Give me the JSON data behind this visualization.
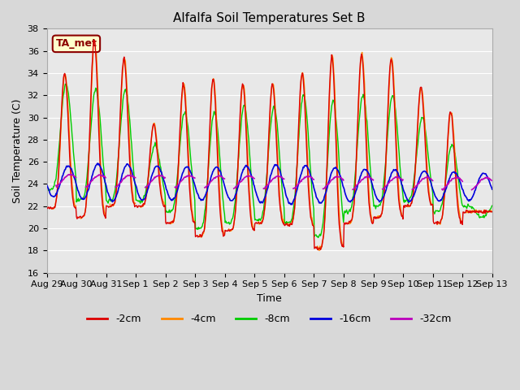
{
  "title": "Alfalfa Soil Temperatures Set B",
  "xlabel": "Time",
  "ylabel": "Soil Temperature (C)",
  "ylim": [
    16,
    38
  ],
  "yticks": [
    16,
    18,
    20,
    22,
    24,
    26,
    28,
    30,
    32,
    34,
    36,
    38
  ],
  "fig_bg": "#d8d8d8",
  "plot_bg": "#e8e8e8",
  "grid_color": "#ffffff",
  "colors": {
    "-2cm": "#dd0000",
    "-4cm": "#ff8800",
    "-8cm": "#00cc00",
    "-16cm": "#0000dd",
    "-32cm": "#bb00bb"
  },
  "legend_label": "TA_met",
  "legend_box_color": "#ffffcc",
  "legend_box_edge": "#8B0000",
  "legend_text_color": "#8B0000",
  "x_tick_labels": [
    "Aug 29",
    "Aug 30",
    "Aug 31",
    "Sep 1",
    "Sep 2",
    "Sep 3",
    "Sep 4",
    "Sep 5",
    "Sep 6",
    "Sep 7",
    "Sep 8",
    "Sep 9",
    "Sep 10",
    "Sep 11",
    "Sep 12",
    "Sep 13"
  ],
  "daily_peaks_2cm": [
    34.0,
    37.0,
    35.3,
    29.4,
    33.0,
    33.5,
    33.0,
    33.0,
    34.0,
    35.5,
    35.7,
    35.3,
    32.7,
    30.5,
    21.5
  ],
  "daily_troughs_2cm": [
    21.8,
    21.0,
    22.0,
    22.0,
    20.5,
    19.3,
    19.8,
    20.5,
    20.3,
    18.2,
    20.5,
    21.0,
    22.0,
    20.5,
    21.5
  ],
  "daily_peaks_8cm": [
    33.0,
    32.5,
    32.5,
    27.5,
    30.5,
    30.5,
    31.0,
    31.0,
    32.0,
    31.5,
    32.0,
    32.0,
    30.0,
    27.5,
    21.0
  ],
  "daily_troughs_8cm": [
    23.5,
    22.5,
    22.5,
    22.5,
    21.5,
    20.0,
    20.5,
    20.8,
    20.5,
    19.3,
    21.5,
    22.0,
    22.5,
    21.5,
    22.0
  ]
}
